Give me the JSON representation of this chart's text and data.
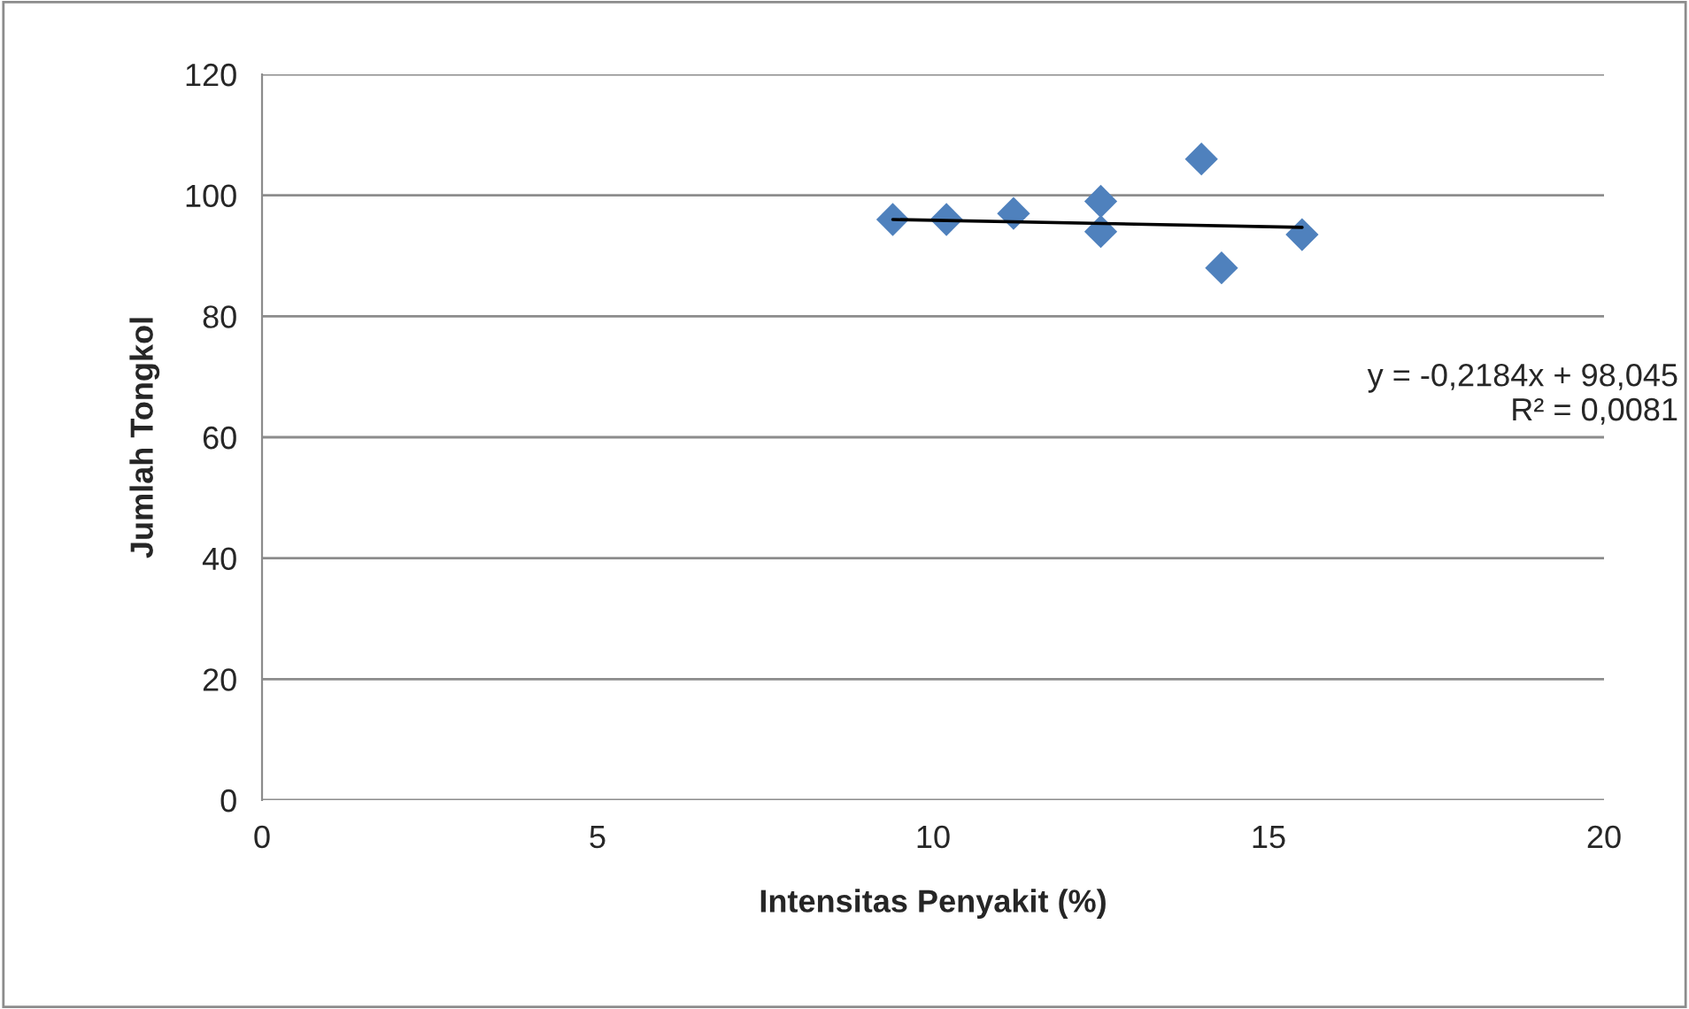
{
  "chart_data": {
    "type": "scatter",
    "xlabel": "Intensitas Penyakit (%)",
    "ylabel": "Jumlah Tongkol",
    "x": [
      9.4,
      10.2,
      11.2,
      12.5,
      12.5,
      14.0,
      14.3,
      15.5
    ],
    "series": [
      {
        "color": "#4f81bd",
        "values": [
          96,
          96,
          97,
          99,
          94,
          106,
          88,
          93.5
        ]
      },
      {
        "type": "line",
        "marker": "none",
        "color": "#000000",
        "x": [
          9.4,
          15.5
        ],
        "values": [
          96.0,
          94.7
        ]
      }
    ],
    "marker": "diamond",
    "xlim": [
      0,
      20
    ],
    "xticks": [
      0,
      5,
      10,
      15,
      20
    ],
    "ylim": [
      0,
      120
    ],
    "yticks": [
      0,
      20,
      40,
      60,
      80,
      100,
      120
    ],
    "grid": "y",
    "annotations": [
      "y = -0,2184x + 98,045\nR² = 0,0081"
    ]
  }
}
